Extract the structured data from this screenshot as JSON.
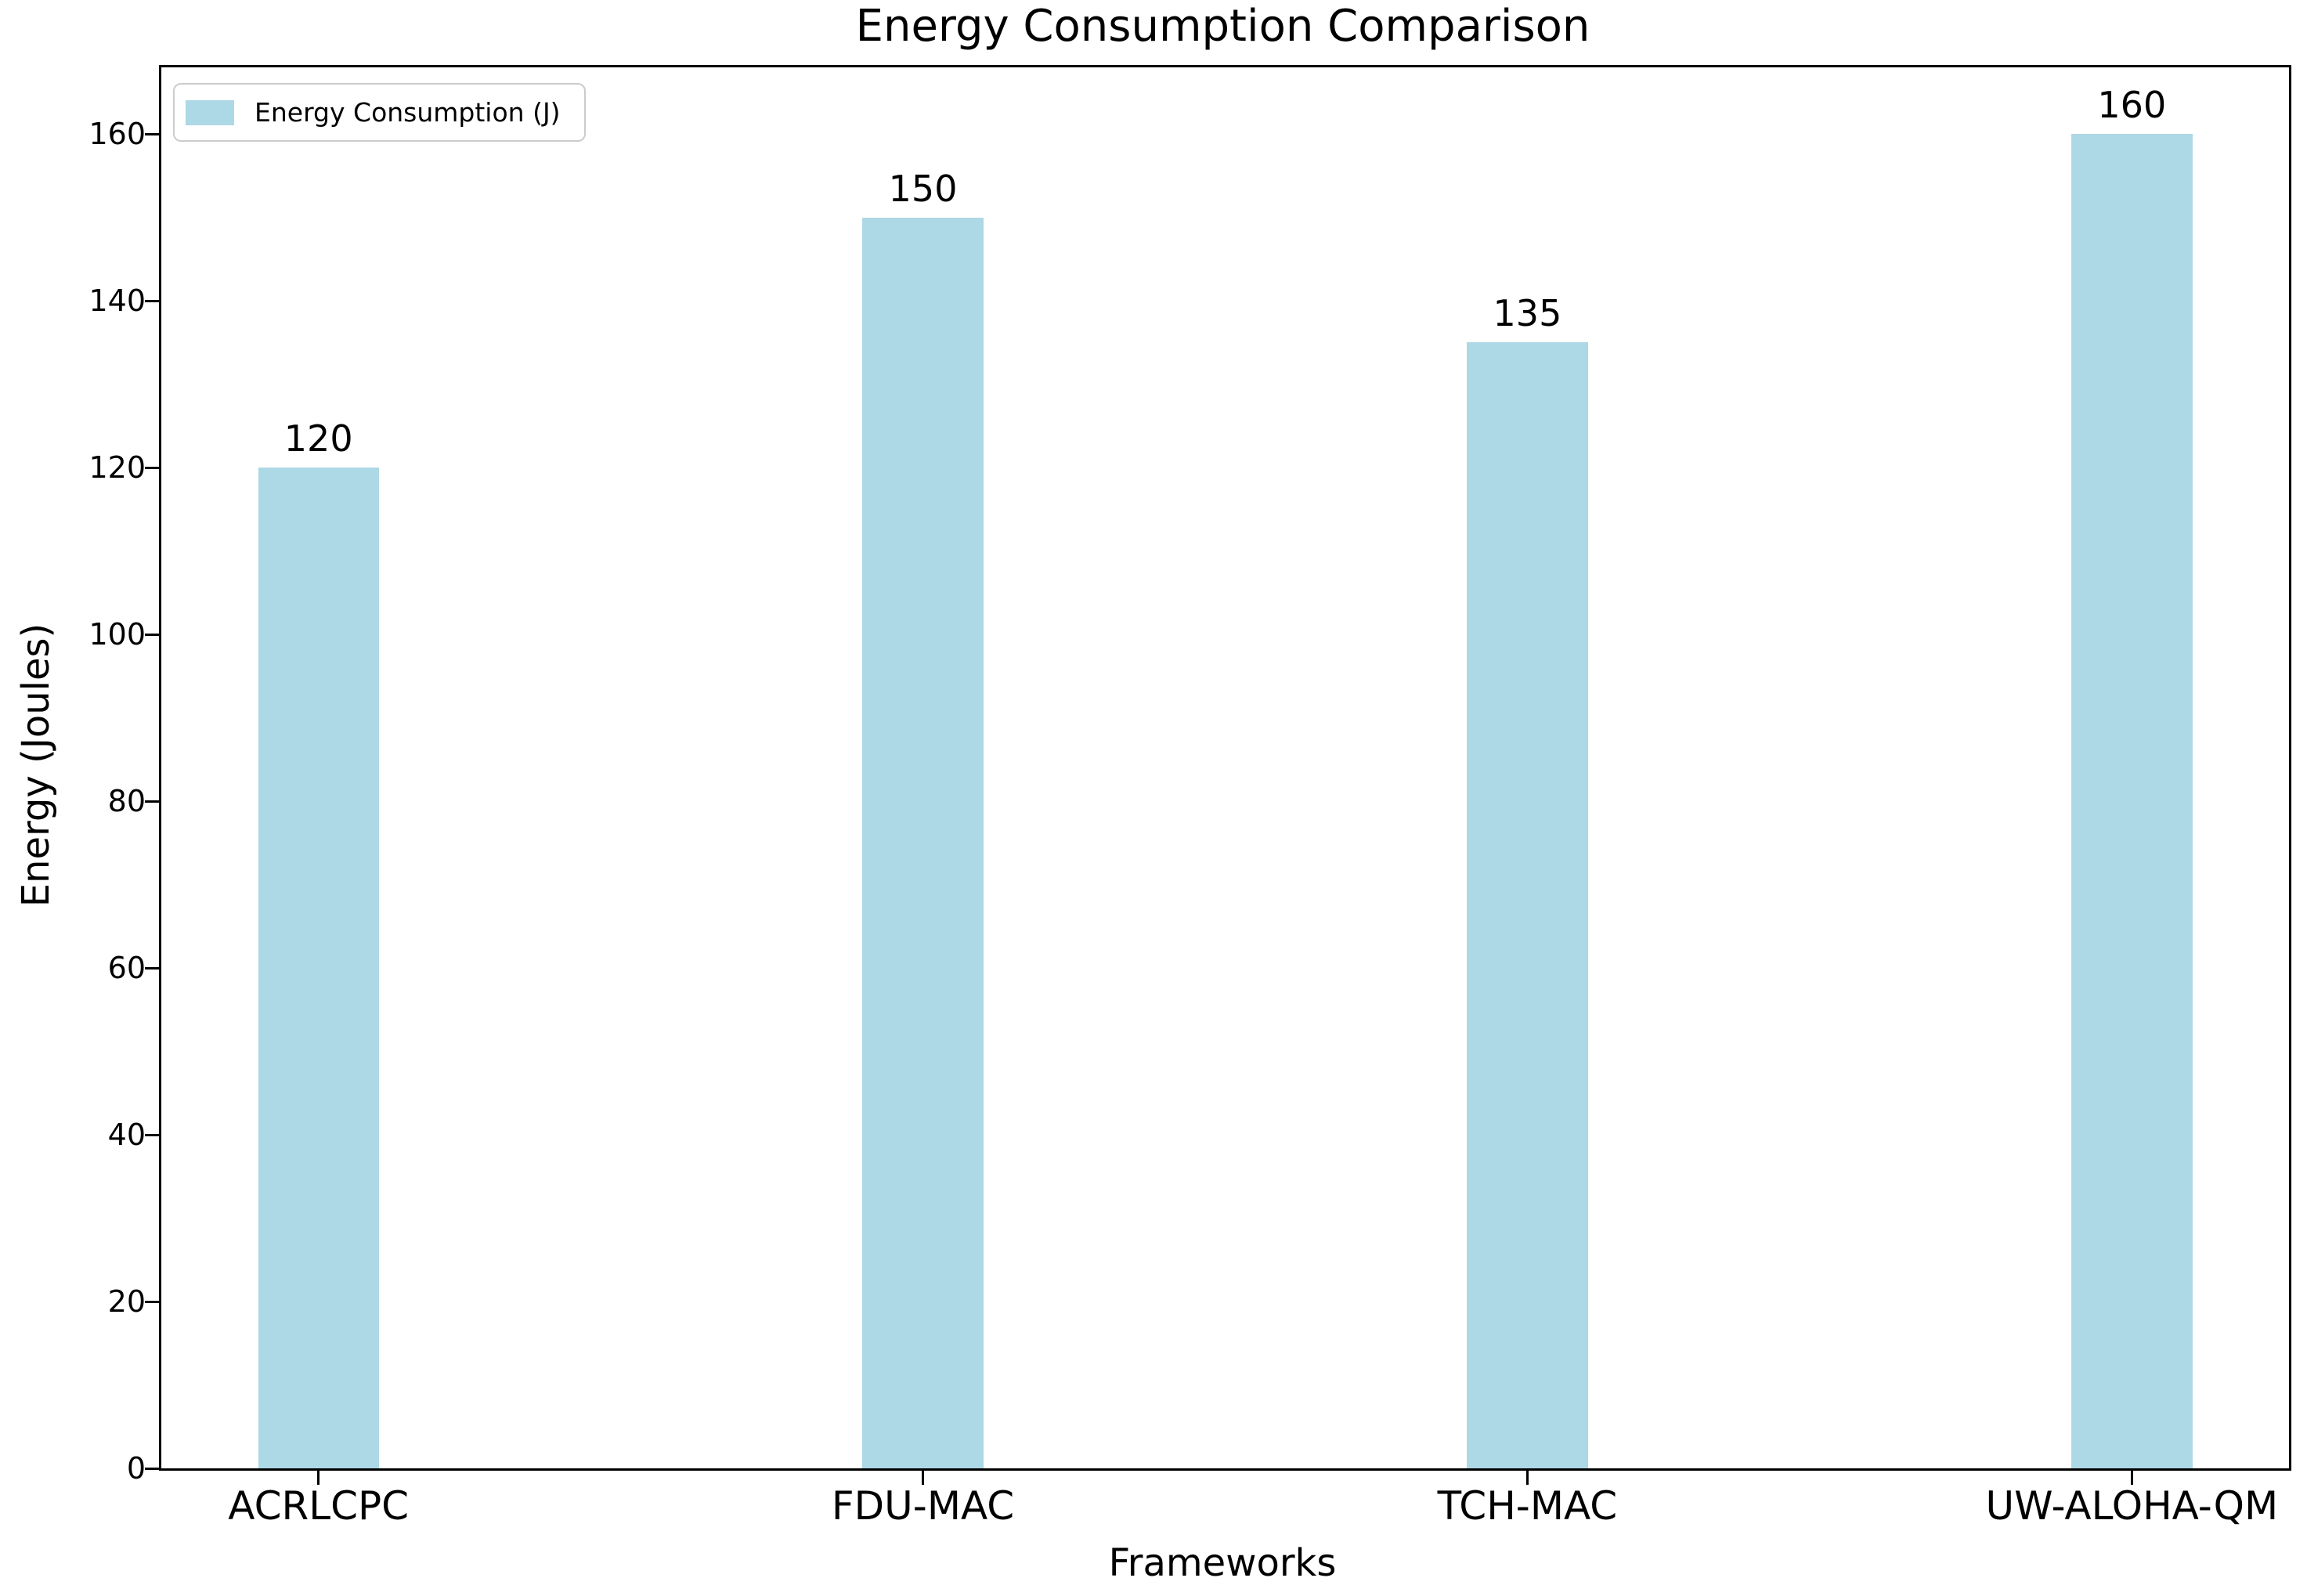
{
  "chart_data": {
    "type": "bar",
    "title": "Energy Consumption Comparison",
    "xlabel": "Frameworks",
    "ylabel": "Energy (Joules)",
    "categories": [
      "ACRLCPC",
      "FDU-MAC",
      "TCH-MAC",
      "UW-ALOHA-QM"
    ],
    "values": [
      120,
      150,
      135,
      160
    ],
    "bar_value_labels": [
      "120",
      "150",
      "135",
      "160"
    ],
    "series_name": "Energy Consumption (J)",
    "yticks": [
      0,
      20,
      40,
      60,
      80,
      100,
      120,
      140,
      160
    ],
    "ylim": [
      0,
      168
    ],
    "grid": false,
    "legend": {
      "position": "upper left",
      "entries": [
        {
          "label": "Energy Consumption (J)",
          "swatch_color": "#ADD8E6"
        }
      ]
    },
    "colors": {
      "bar": "#ADD8E6",
      "text": "#000000",
      "spine": "#000000",
      "legend_border": "#cccccc",
      "background": "#ffffff"
    }
  }
}
